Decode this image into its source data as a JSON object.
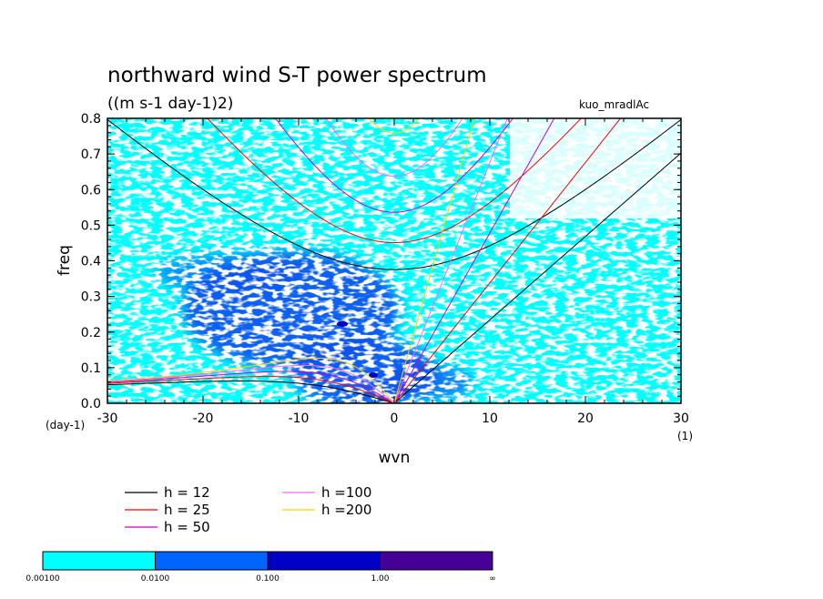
{
  "chart_data": {
    "type": "heatmap",
    "title": "northward wind S-T power spectrum",
    "subtitle": "((m s-1 day-1)2)",
    "annotation": "kuo_mradlAc",
    "xlabel": "wvn",
    "ylabel": "freq",
    "x_unit": "(1)",
    "y_unit": "(day-1)",
    "xlim": [
      -30,
      30
    ],
    "ylim": [
      0,
      0.8
    ],
    "xticks": [
      "-30",
      "-20",
      "-10",
      "0",
      "10",
      "20",
      "30"
    ],
    "yticks": [
      "0.0",
      "0.1",
      "0.2",
      "0.3",
      "0.4",
      "0.5",
      "0.6",
      "0.7",
      "0.8"
    ],
    "contour_levels": [
      "0.00100",
      "0.0100",
      "0.100",
      "1.00",
      "∞"
    ],
    "contour_colors": [
      "#00ffff",
      "#0064ff",
      "#0000c8",
      "#460096"
    ],
    "dispersion_curves": [
      {
        "name": "h = 12",
        "h": 12,
        "color": "#000000"
      },
      {
        "name": "h = 25",
        "h": 25,
        "color": "#ff0000"
      },
      {
        "name": "h = 50",
        "h": 50,
        "color": "#c800c8"
      },
      {
        "name": "h =100",
        "h": 100,
        "color": "#ff64ff"
      },
      {
        "name": "h =200",
        "h": 200,
        "color": "#ffd200"
      }
    ]
  }
}
